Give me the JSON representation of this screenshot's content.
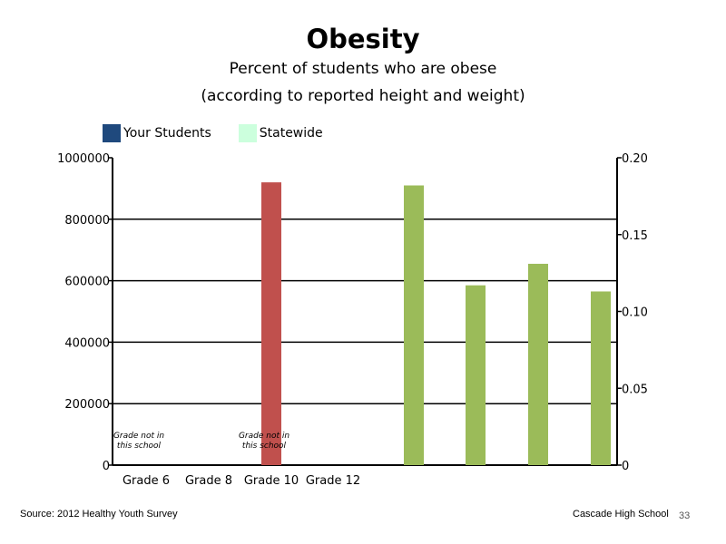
{
  "chart_data": {
    "type": "bar",
    "title": "Obesity",
    "subtitle_line1": "Percent of students who are obese",
    "subtitle_line2": "(according to reported height and weight)",
    "legend_placement": "top-left",
    "legend": [
      {
        "name": "Your Students",
        "color": "#1f497d"
      },
      {
        "name": "Statewide",
        "color": "#ccffdd"
      }
    ],
    "categories": [
      "Grade 6",
      "Grade 8",
      "Grade 10",
      "Grade 12"
    ],
    "y_left": {
      "ylim": [
        0,
        1000000
      ],
      "ticks": [
        "1000000",
        "800000",
        "600000",
        "400000",
        "200000",
        "0"
      ]
    },
    "y_right": {
      "ylim": [
        0,
        0.2
      ],
      "ticks": [
        "0.20",
        "0.15",
        "0.10",
        "0.05",
        "0"
      ]
    },
    "grid": true,
    "series": [
      {
        "axis": "left",
        "color": "#c0504d",
        "values": [
          {
            "category_index": 2,
            "value": 920000
          }
        ]
      },
      {
        "axis": "right",
        "color": "#9bbb59",
        "values": [
          0.182,
          0.117,
          0.131,
          0.113
        ]
      }
    ],
    "annotations": [
      {
        "category_index": 0,
        "line1": "Grade not in",
        "line2": "this school"
      },
      {
        "category_index": 2,
        "line1": "Grade not in",
        "line2": "this school"
      }
    ]
  },
  "footer": {
    "source": "Source: 2012 Healthy Youth Survey",
    "school": "Cascade High School",
    "page": "33"
  }
}
